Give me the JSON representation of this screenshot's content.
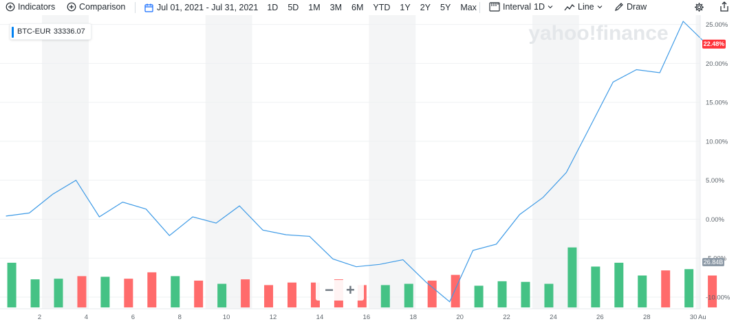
{
  "toolbar": {
    "indicators_label": "Indicators",
    "comparison_label": "Comparison",
    "date_range_label": "Jul 01, 2021 - Jul 31, 2021",
    "ranges": [
      "1D",
      "5D",
      "1M",
      "3M",
      "6M",
      "YTD",
      "1Y",
      "2Y",
      "5Y",
      "Max"
    ],
    "interval_label": "Interval",
    "interval_value": "1D",
    "chart_type_label": "Line",
    "draw_label": "Draw",
    "icons": [
      "plus-circle-icon",
      "calendar-icon",
      "interval-icon",
      "line-chart-icon",
      "pencil-icon",
      "gear-icon",
      "share-icon"
    ]
  },
  "legend": {
    "symbol": "BTC-EUR",
    "value": "33336.07",
    "color": "#0081f2"
  },
  "watermark": "yahoo!finance",
  "zoom": {
    "minus": "−",
    "plus": "+"
  },
  "chart_data": {
    "type": "line",
    "line_color": "#3d9ae6",
    "volume_colors": {
      "up": "#45c285",
      "down": "#ff6b6b"
    },
    "ylim": [
      -11.5,
      26.2
    ],
    "yticks": [
      25,
      20,
      15,
      10,
      5,
      0,
      -5,
      -10
    ],
    "ytick_labels": [
      "25.00%",
      "20.00%",
      "15.00%",
      "10.00%",
      "5.00%",
      "0.00%",
      "-5.00%",
      "-10.00%"
    ],
    "x": [
      1,
      2,
      3,
      4,
      5,
      6,
      7,
      8,
      9,
      10,
      11,
      12,
      13,
      14,
      15,
      16,
      17,
      18,
      19,
      20,
      21,
      22,
      23,
      24,
      25,
      26,
      27,
      28,
      29,
      30,
      31
    ],
    "values": [
      0.4,
      0.8,
      3.2,
      5.0,
      0.3,
      2.2,
      1.3,
      -2.1,
      0.3,
      -0.5,
      1.7,
      -1.4,
      -2.0,
      -2.2,
      -5.1,
      -6.1,
      -5.8,
      -5.2,
      -8.1,
      -10.6,
      -4.0,
      -3.2,
      0.6,
      2.8,
      6.0,
      11.8,
      17.6,
      19.2,
      18.8,
      25.4,
      22.48
    ],
    "last_value_label": "22.48%",
    "volume": {
      "up": [
        true,
        true,
        true,
        false,
        true,
        false,
        false,
        true,
        false,
        true,
        false,
        false,
        false,
        false,
        false,
        false,
        true,
        true,
        false,
        false,
        true,
        true,
        true,
        true,
        true,
        true,
        true,
        true,
        false,
        true,
        false
      ],
      "relative": [
        0.7,
        0.44,
        0.45,
        0.49,
        0.48,
        0.45,
        0.55,
        0.49,
        0.42,
        0.37,
        0.44,
        0.35,
        0.39,
        0.39,
        0.44,
        0.35,
        0.35,
        0.37,
        0.42,
        0.51,
        0.34,
        0.41,
        0.4,
        0.37,
        0.94,
        0.64,
        0.7,
        0.5,
        0.58,
        0.6,
        0.5
      ],
      "label": "26.84B"
    },
    "xticks": [
      2,
      4,
      6,
      8,
      10,
      12,
      14,
      16,
      18,
      20,
      22,
      24,
      26,
      28,
      30
    ],
    "xtick_labels": [
      "2",
      "4",
      "6",
      "8",
      "10",
      "12",
      "14",
      "16",
      "18",
      "20",
      "22",
      "24",
      "26",
      "28",
      "30"
    ],
    "xtick_next_label": "Au",
    "weekend_bands": [
      [
        3,
        4
      ],
      [
        10,
        11
      ],
      [
        17,
        18
      ],
      [
        24,
        25
      ],
      [
        31,
        32
      ]
    ]
  }
}
